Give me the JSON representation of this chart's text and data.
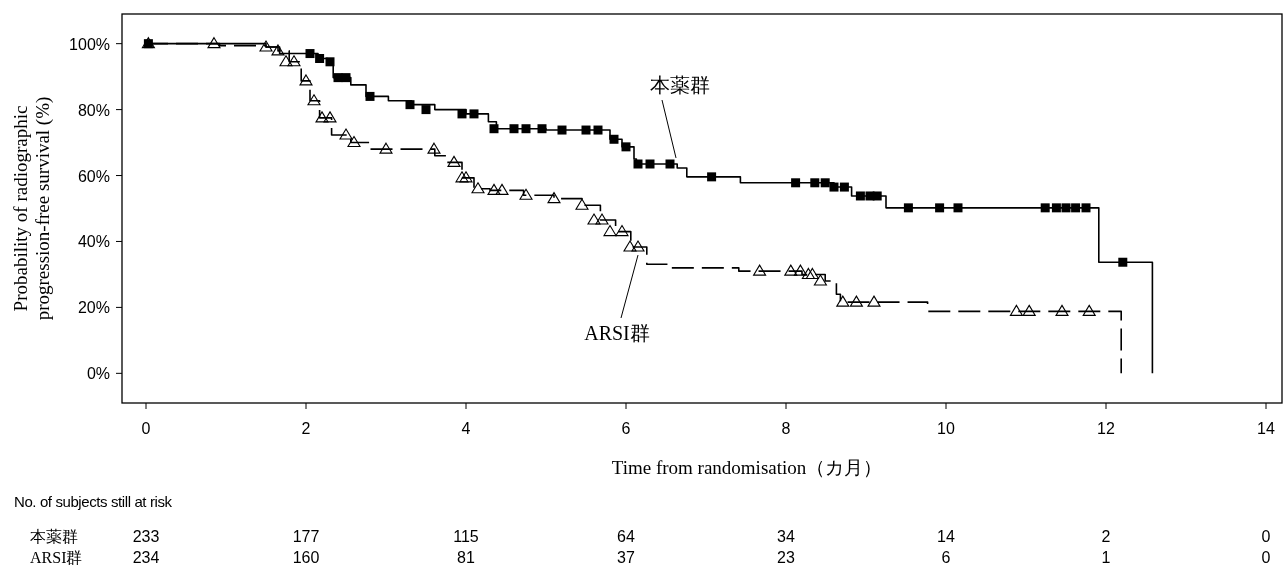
{
  "chart_data": {
    "type": "step",
    "xlabel": "Time from randomisation（カ月）",
    "ylabel": "Probability of radiographic\nprogression-free survival (%)",
    "xlim": [
      -0.3,
      14.2
    ],
    "ylim": [
      -9,
      109
    ],
    "xticks": [
      0,
      2,
      4,
      6,
      8,
      10,
      12,
      14
    ],
    "yticks": [
      {
        "value": 0,
        "label": "0%"
      },
      {
        "value": 20,
        "label": "20%"
      },
      {
        "value": 40,
        "label": "40%"
      },
      {
        "value": 60,
        "label": "60%"
      },
      {
        "value": 80,
        "label": "80%"
      },
      {
        "value": 100,
        "label": "100%"
      }
    ],
    "grid": false,
    "series": [
      {
        "name": "本薬群",
        "color": "#000000",
        "line_style": "solid",
        "x": [
          0,
          1.5,
          1.67,
          2.15,
          2.27,
          2.34,
          2.56,
          2.75,
          3.03,
          3.32,
          3.61,
          4.0,
          4.28,
          4.38,
          5.0,
          5.8,
          5.95,
          6.1,
          6.13,
          6.64,
          6.76,
          7.43,
          8.6,
          8.82,
          9.25,
          11.91,
          12.58
        ],
        "values": [
          100,
          99,
          97,
          95.5,
          94.5,
          89.7,
          87.5,
          84,
          82.7,
          81.5,
          80,
          78.7,
          76.3,
          74.2,
          73.8,
          71,
          68.7,
          65,
          63.5,
          62.3,
          59.6,
          57.8,
          56.5,
          53.8,
          50.2,
          33.7,
          0
        ]
      },
      {
        "name": "ARSI群",
        "color": "#000000",
        "line_style": "dashed",
        "x": [
          0,
          0.92,
          1.5,
          1.65,
          1.79,
          1.94,
          2.05,
          2.17,
          2.32,
          2.56,
          2.8,
          3.61,
          3.76,
          3.95,
          4.1,
          4.3,
          4.72,
          5.1,
          5.45,
          5.68,
          5.87,
          6.06,
          6.26,
          6.54,
          7.41,
          8.2,
          8.49,
          8.63,
          8.68,
          9.77,
          12.19
        ],
        "values": [
          100,
          99.4,
          99,
          97.8,
          94.5,
          88.7,
          82.7,
          77.5,
          72.3,
          70,
          68,
          66,
          64,
          59.3,
          56,
          55.5,
          54,
          53,
          51,
          46.5,
          43,
          38.3,
          33.1,
          32,
          31,
          30,
          28,
          24,
          21.6,
          18.8,
          0
        ]
      },
      {
        "type": "scatter",
        "color": "#000000",
        "marker": "square",
        "x": [
          0.03,
          2.05,
          2.17,
          2.3,
          2.4,
          2.5,
          2.8,
          3.3,
          3.5,
          3.95,
          4.1,
          4.35,
          4.6,
          4.75,
          4.95,
          5.2,
          5.5,
          5.65,
          5.85,
          6.0,
          6.15,
          6.3,
          6.55,
          7.07,
          8.12,
          8.36,
          8.49,
          8.6,
          8.73,
          8.93,
          9.05,
          9.14,
          9.53,
          9.92,
          10.15,
          11.24,
          11.38,
          11.5,
          11.62,
          11.75,
          12.21
        ],
        "values": [
          100,
          97,
          95.5,
          94.5,
          89.7,
          89.7,
          84,
          81.5,
          80,
          78.7,
          78.7,
          74.2,
          74.2,
          74.2,
          74.2,
          73.8,
          73.8,
          73.8,
          71,
          68.7,
          63.5,
          63.5,
          63.5,
          59.6,
          57.8,
          57.8,
          57.8,
          56.5,
          56.5,
          53.8,
          53.8,
          53.8,
          50.2,
          50.2,
          50.2,
          50.2,
          50.2,
          50.2,
          50.2,
          50.2,
          33.7
        ]
      },
      {
        "type": "scatter",
        "color": "#000000",
        "marker": "triangle",
        "x": [
          0.03,
          0.85,
          1.5,
          1.65,
          1.75,
          1.85,
          2.0,
          2.1,
          2.2,
          2.3,
          2.5,
          2.6,
          3.0,
          3.6,
          3.85,
          3.95,
          4.0,
          4.15,
          4.35,
          4.45,
          4.75,
          5.1,
          5.45,
          5.6,
          5.7,
          5.8,
          5.95,
          6.05,
          6.15,
          7.67,
          8.06,
          8.18,
          8.28,
          8.33,
          8.43,
          8.71,
          8.88,
          9.1,
          10.88,
          11.04,
          11.45,
          11.79
        ],
        "values": [
          100,
          100,
          99,
          97.8,
          94.5,
          94.5,
          88.7,
          82.7,
          77.5,
          77.5,
          72.3,
          70,
          68,
          68,
          64,
          59.3,
          59.3,
          56,
          55.5,
          55.5,
          54,
          53,
          51,
          46.5,
          46.5,
          43,
          43,
          38.3,
          38.3,
          31,
          31,
          31,
          30,
          30,
          28,
          21.6,
          21.6,
          21.6,
          18.8,
          18.8,
          18.8,
          18.8
        ]
      }
    ],
    "annotations": [
      "No. of subjects still at risk",
      "本薬群",
      "233",
      "177",
      "115",
      "64",
      "34",
      "14",
      "2",
      "0",
      "ARSI群",
      "234",
      "160",
      "81",
      "37",
      "23",
      "6",
      "1",
      "0"
    ]
  }
}
